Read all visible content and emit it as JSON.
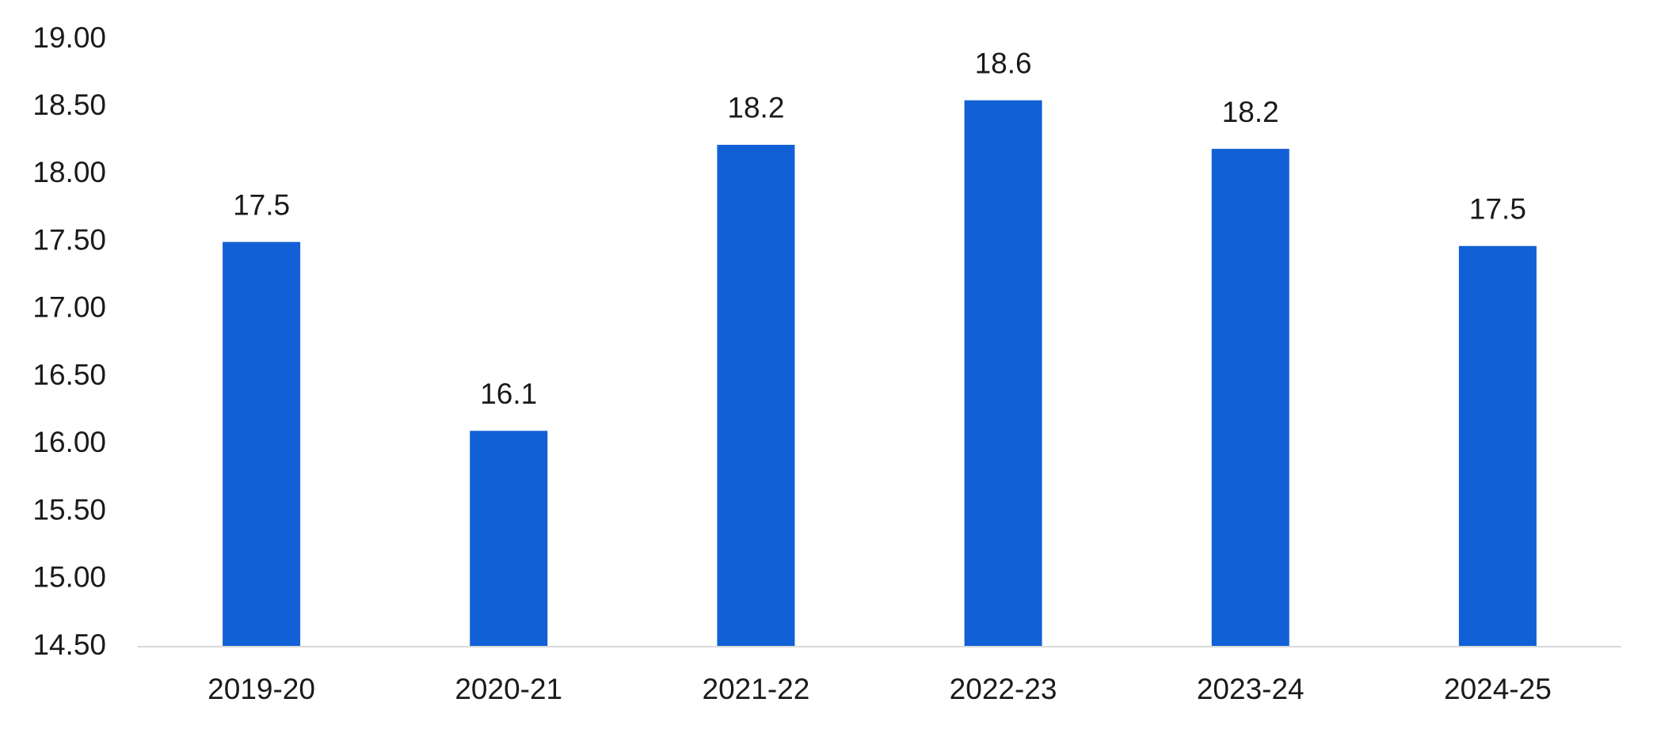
{
  "chart_data": {
    "type": "bar",
    "categories": [
      "2019-20",
      "2020-21",
      "2021-22",
      "2022-23",
      "2023-24",
      "2024-25"
    ],
    "values": [
      17.5,
      16.1,
      18.22,
      18.55,
      18.19,
      17.47
    ],
    "value_labels": [
      "17.5",
      "16.1",
      "18.2",
      "18.6",
      "18.2",
      "17.5"
    ],
    "color": "#1160d6",
    "ylim": [
      14.5,
      19
    ],
    "yticks": [
      {
        "value": 14.5,
        "label": "14.50"
      },
      {
        "value": 15,
        "label": "15.00"
      },
      {
        "value": 15.5,
        "label": "15.50"
      },
      {
        "value": 16,
        "label": "16.00"
      },
      {
        "value": 16.5,
        "label": "16.50"
      },
      {
        "value": 17,
        "label": "17.00"
      },
      {
        "value": 17.5,
        "label": "17.50"
      },
      {
        "value": 18,
        "label": "18.00"
      },
      {
        "value": 18.5,
        "label": "18.50"
      },
      {
        "value": 19,
        "label": "19.00"
      }
    ],
    "grid": false
  }
}
